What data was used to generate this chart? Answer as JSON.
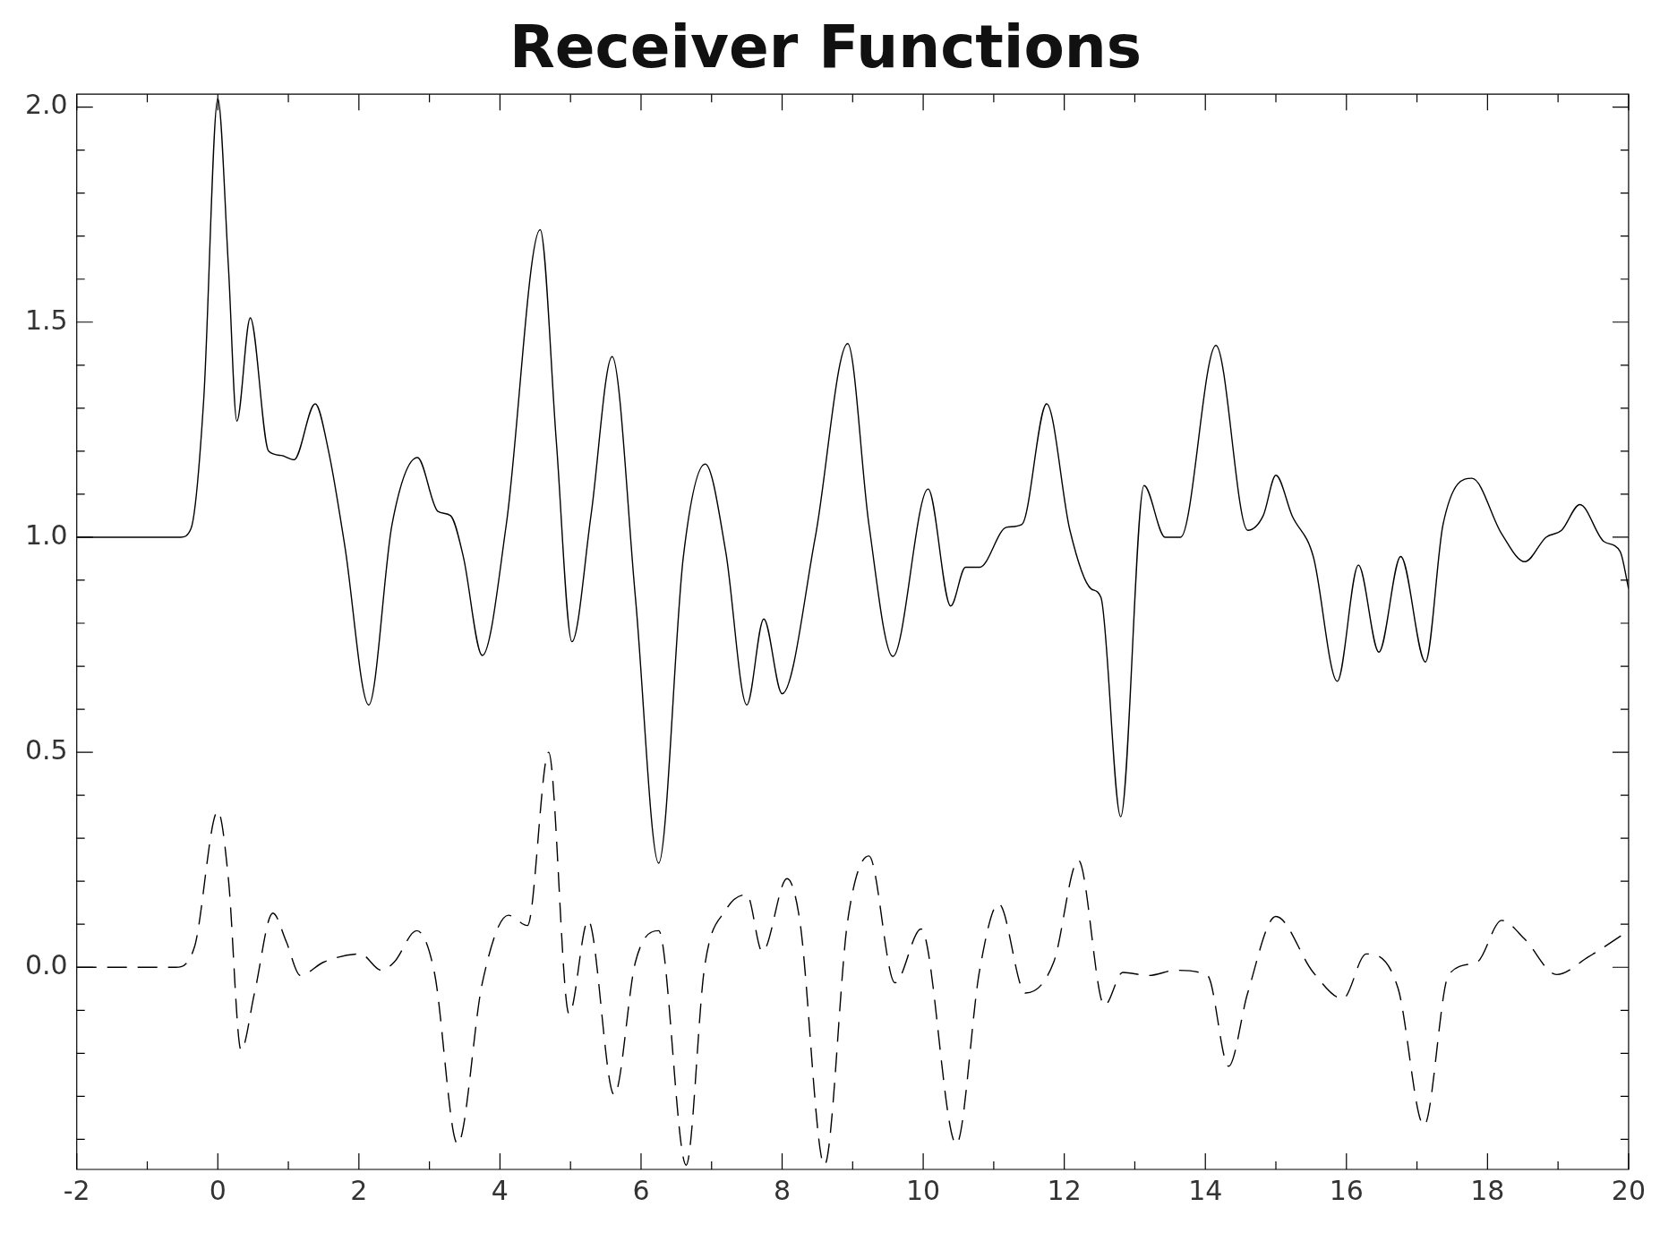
{
  "chart_data": {
    "type": "line",
    "title": "Receiver Functions",
    "xlim": [
      -2,
      20
    ],
    "xticks": [
      -2,
      0,
      2,
      4,
      6,
      8,
      10,
      12,
      14,
      16,
      18,
      20
    ],
    "ylim": [
      -0.47,
      2.03
    ],
    "yticks": [
      {
        "value": 0,
        "label": "0.0"
      },
      {
        "value": 0.5,
        "label": "0.5"
      },
      {
        "value": 1,
        "label": "1.0"
      },
      {
        "value": 1.5,
        "label": "1.5"
      },
      {
        "value": 2,
        "label": "2.0"
      }
    ],
    "grid": false,
    "legend": false,
    "marker": "none",
    "series": [
      {
        "color": "#000000",
        "line_style": "solid",
        "x": [
          -2,
          -0.53,
          -0.38,
          -0.2,
          0,
          0.15,
          0.27,
          0.46,
          0.72,
          0.9,
          1.08,
          1.38,
          1.57,
          1.8,
          2.14,
          2.47,
          2.83,
          3.12,
          3.3,
          3.48,
          3.75,
          4.09,
          4.57,
          4.8,
          5.02,
          5.29,
          5.59,
          5.92,
          6.25,
          6.6,
          6.91,
          7.2,
          7.5,
          7.74,
          8,
          8.47,
          8.93,
          9.23,
          9.57,
          10.07,
          10.39,
          10.6,
          10.8,
          11.18,
          11.4,
          11.75,
          12.08,
          12.38,
          12.52,
          12.8,
          13.13,
          13.43,
          13.65,
          14.15,
          14.6,
          14.82,
          15,
          15.23,
          15.53,
          15.87,
          16.17,
          16.46,
          16.77,
          17.12,
          17.37,
          17.78,
          18.2,
          18.53,
          18.83,
          19.05,
          19.31,
          19.65,
          19.88,
          20
        ],
        "values": [
          1,
          1,
          1.02,
          1.32,
          2.02,
          1.63,
          1.27,
          1.51,
          1.2,
          1.19,
          1.18,
          1.31,
          1.2,
          0.98,
          0.61,
          1.03,
          1.185,
          1.06,
          1.05,
          0.955,
          0.725,
          1.03,
          1.715,
          1.22,
          0.757,
          1.05,
          1.42,
          0.86,
          0.242,
          0.955,
          1.17,
          0.967,
          0.61,
          0.81,
          0.636,
          1,
          1.45,
          1.03,
          0.723,
          1.112,
          0.84,
          0.93,
          0.93,
          1.023,
          1.03,
          1.31,
          1.016,
          0.88,
          0.86,
          0.35,
          1.12,
          1,
          1,
          1.446,
          1.016,
          1.05,
          1.144,
          1.05,
          0.955,
          0.665,
          0.935,
          0.733,
          0.955,
          0.71,
          1.03,
          1.137,
          1.008,
          0.943,
          1,
          1.016,
          1.076,
          0.99,
          0.967,
          0.88
        ]
      },
      {
        "color": "#000000",
        "line_style": "dashed",
        "x": [
          -2,
          -0.6,
          -0.33,
          0,
          0.15,
          0.33,
          0.52,
          0.78,
          0.97,
          1.17,
          1.5,
          2.02,
          2.32,
          2.5,
          2.82,
          3.07,
          3.4,
          3.75,
          4.12,
          4.39,
          4.69,
          4.98,
          5.25,
          5.62,
          5.92,
          6.25,
          6.64,
          6.9,
          7.2,
          7.5,
          7.72,
          8.07,
          8.25,
          8.6,
          8.93,
          9.23,
          9.6,
          9.97,
          10.47,
          10.8,
          11.07,
          11.45,
          11.85,
          12.2,
          12.57,
          12.83,
          13.2,
          13.58,
          14.03,
          14.33,
          14.6,
          15,
          15.53,
          15.95,
          16.28,
          16.73,
          17.1,
          17.45,
          17.85,
          18.2,
          18.53,
          18.98,
          19.43,
          20
        ],
        "values": [
          0,
          0,
          0.048,
          0.363,
          0.206,
          -0.193,
          -0.06,
          0.126,
          0.06,
          -0.019,
          0.012,
          0.031,
          -0.007,
          0.012,
          0.085,
          -0.012,
          -0.411,
          -0.036,
          0.121,
          0.097,
          0.5,
          -0.109,
          0.109,
          -0.297,
          0.012,
          0.085,
          -0.46,
          0,
          0.133,
          0.169,
          0.036,
          0.206,
          0.109,
          -0.46,
          0.109,
          0.259,
          -0.036,
          0.089,
          -0.411,
          -0.007,
          0.148,
          -0.06,
          0.012,
          0.249,
          -0.089,
          -0.012,
          -0.019,
          -0.007,
          -0.019,
          -0.23,
          -0.06,
          0.118,
          -0.012,
          -0.073,
          0.031,
          -0.048,
          -0.368,
          -0.017,
          0.012,
          0.109,
          0.065,
          -0.017,
          0.024,
          0.085
        ]
      }
    ]
  }
}
